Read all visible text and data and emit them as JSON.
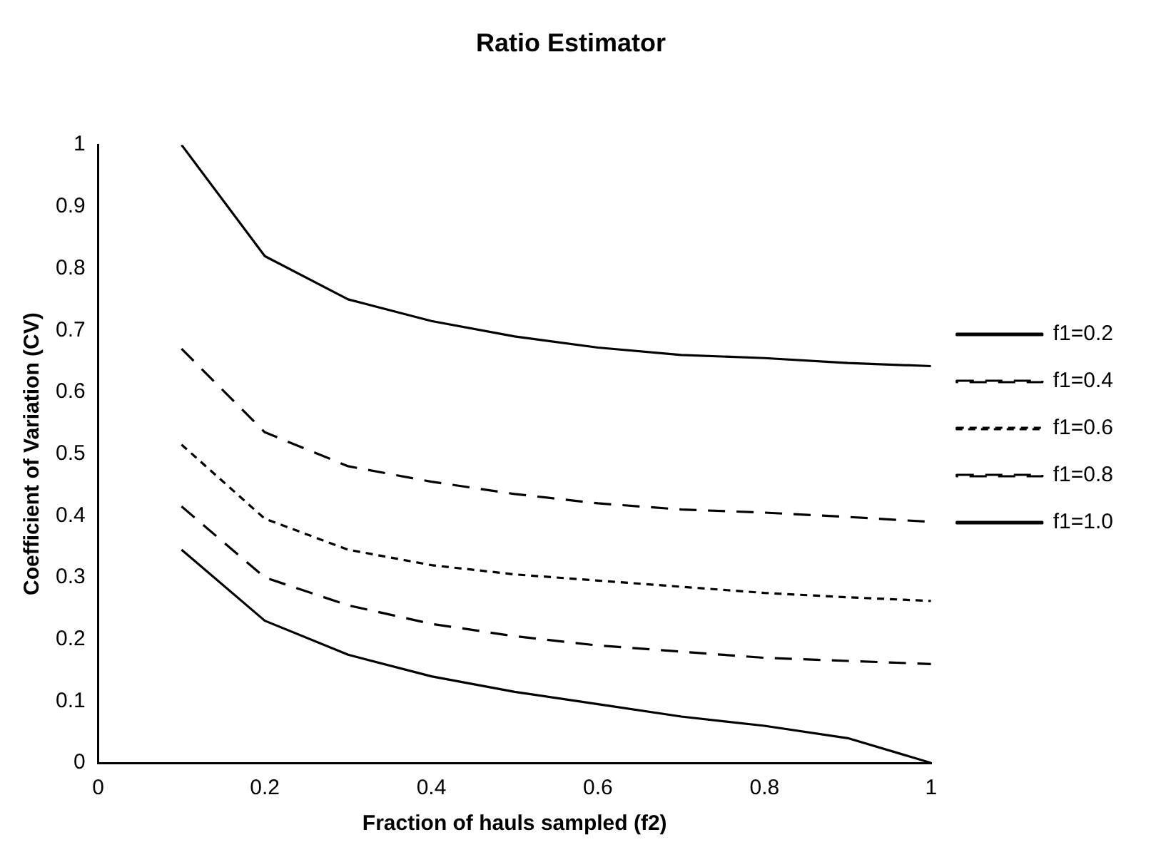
{
  "chart_data": {
    "type": "line",
    "title": "Ratio Estimator",
    "xlabel": "Fraction of hauls sampled (f2)",
    "ylabel": "Coefficient of Variation (CV)",
    "x": [
      0.1,
      0.2,
      0.3,
      0.4,
      0.5,
      0.6,
      0.7,
      0.8,
      0.9,
      1.0
    ],
    "series": [
      {
        "name": "f1=0.2",
        "color": "#000000",
        "line_style": "solid",
        "values": [
          1.0,
          0.82,
          0.75,
          0.715,
          0.69,
          0.672,
          0.66,
          0.655,
          0.647,
          0.642
        ]
      },
      {
        "name": "f1=0.4",
        "color": "#000000",
        "line_style": "dashed",
        "values": [
          0.67,
          0.535,
          0.48,
          0.455,
          0.435,
          0.42,
          0.41,
          0.405,
          0.398,
          0.39
        ]
      },
      {
        "name": "f1=0.6",
        "color": "#000000",
        "line_style": "dotted",
        "values": [
          0.515,
          0.395,
          0.345,
          0.32,
          0.305,
          0.295,
          0.285,
          0.275,
          0.268,
          0.262
        ]
      },
      {
        "name": "f1=0.8",
        "color": "#000000",
        "line_style": "dashed",
        "values": [
          0.415,
          0.3,
          0.255,
          0.225,
          0.205,
          0.19,
          0.18,
          0.17,
          0.165,
          0.16
        ]
      },
      {
        "name": "f1=1.0",
        "color": "#000000",
        "line_style": "solid",
        "values": [
          0.345,
          0.23,
          0.175,
          0.14,
          0.115,
          0.095,
          0.075,
          0.06,
          0.04,
          0.0
        ]
      }
    ],
    "xlim": [
      0,
      1
    ],
    "xticks": [
      0,
      0.2,
      0.4,
      0.6,
      0.8,
      1
    ],
    "ylim": [
      0,
      1
    ],
    "yticks": [
      0,
      0.1,
      0.2,
      0.3,
      0.4,
      0.5,
      0.6,
      0.7,
      0.8,
      0.9,
      1
    ],
    "grid": false,
    "legend": "right",
    "marker": "none"
  }
}
